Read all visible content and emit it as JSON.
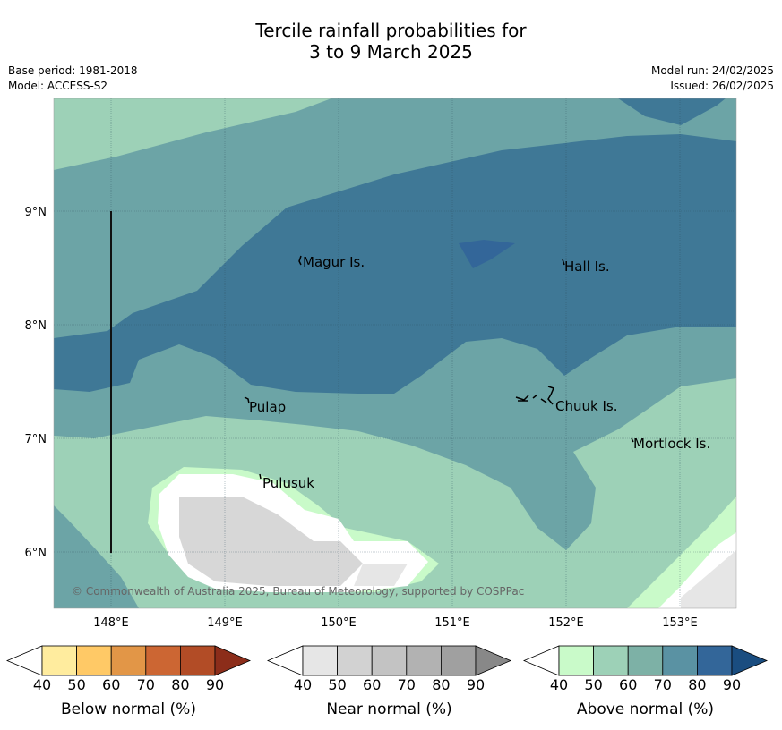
{
  "title_line1": "Tercile rainfall probabilities for",
  "title_line2": "3 to 9 March 2025",
  "meta": {
    "base_period": "Base period: 1981-2018",
    "model": "Model: ACCESS-S2",
    "model_run": "Model run: 24/02/2025",
    "issued": "Issued: 26/02/2025"
  },
  "map": {
    "lon_labels": [
      "148°E",
      "149°E",
      "150°E",
      "151°E",
      "152°E",
      "153°E"
    ],
    "lat_labels": [
      "9°N",
      "8°N",
      "7°N",
      "6°N"
    ],
    "places": [
      {
        "name": "Magur Is."
      },
      {
        "name": "Hall Is."
      },
      {
        "name": "Pulap"
      },
      {
        "name": "Chuuk Is."
      },
      {
        "name": "Mortlock Is."
      },
      {
        "name": "Pulusuk"
      }
    ],
    "copyright": "© Commonwealth of Australia 2025, Bureau of Meteorology, supported by COSPPac",
    "colors": {
      "above_40_50": "#c9fac9",
      "above_50_60": "#9dd1b7",
      "above_60_70": "#6ca4a6",
      "above_70_80": "#3f7896",
      "above_80_90": "#336699",
      "near_60_70": "#d7d7d7",
      "near_40_50": "#e6e6e6"
    }
  },
  "legend": [
    {
      "title": "Below normal (%)",
      "ticks": [
        "40",
        "50",
        "60",
        "70",
        "80",
        "90"
      ],
      "colors": [
        "#ffffff",
        "#ffec9e",
        "#ffc966",
        "#e29647",
        "#cc6633",
        "#b24c26",
        "#8c2d1a"
      ]
    },
    {
      "title": "Near normal (%)",
      "ticks": [
        "40",
        "50",
        "60",
        "70",
        "80",
        "90"
      ],
      "colors": [
        "#ffffff",
        "#e6e6e6",
        "#d2d2d2",
        "#c3c3c3",
        "#b2b2b2",
        "#a0a0a0",
        "#888888"
      ]
    },
    {
      "title": "Above normal (%)",
      "ticks": [
        "40",
        "50",
        "60",
        "70",
        "80",
        "90"
      ],
      "colors": [
        "#ffffff",
        "#c9fac9",
        "#9dd1b7",
        "#7db1a6",
        "#5a92a3",
        "#336699",
        "#1a4d80"
      ]
    }
  ]
}
